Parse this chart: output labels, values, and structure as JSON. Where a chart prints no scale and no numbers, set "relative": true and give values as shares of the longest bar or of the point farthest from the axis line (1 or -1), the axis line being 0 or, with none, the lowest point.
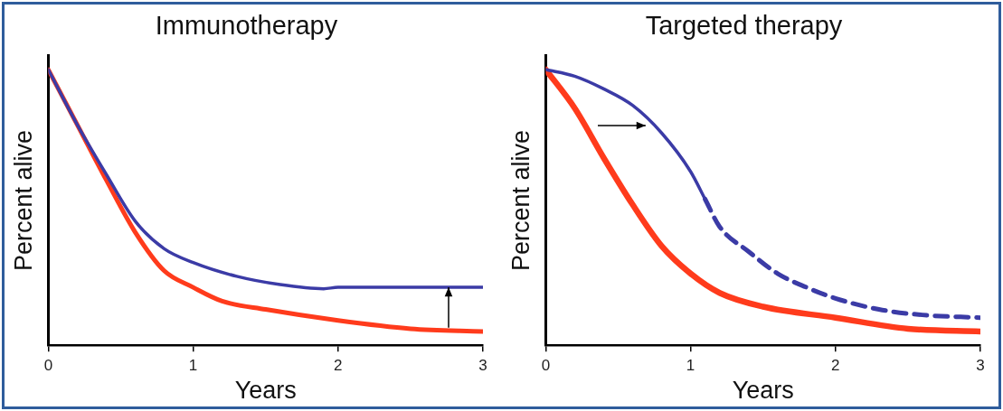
{
  "chart_data": [
    {
      "type": "line",
      "title": "Immunotherapy",
      "xlabel": "Years",
      "ylabel": "Percent alive",
      "relative": true,
      "xlim": [
        0,
        3
      ],
      "xticks": [
        0,
        1,
        2,
        3
      ],
      "grid": false,
      "legend": false,
      "marker": "none",
      "series": [
        {
          "color": "#3b3ba6",
          "line_style": "solid",
          "x": [
            0,
            0.2,
            0.4,
            0.6,
            0.8,
            1,
            1.3,
            1.6,
            1.9,
            2,
            3
          ],
          "values": [
            1,
            0.8,
            0.62,
            0.45,
            0.35,
            0.3,
            0.25,
            0.22,
            0.205,
            0.21,
            0.21
          ]
        },
        {
          "color": "#ff3b1c",
          "line_style": "solid",
          "x": [
            0,
            0.2,
            0.4,
            0.6,
            0.8,
            1,
            1.2,
            1.5,
            2,
            2.5,
            3
          ],
          "values": [
            1,
            0.8,
            0.6,
            0.41,
            0.27,
            0.21,
            0.16,
            0.13,
            0.09,
            0.06,
            0.05
          ]
        }
      ]
    },
    {
      "type": "line",
      "title": "Targeted therapy",
      "xlabel": "Years",
      "ylabel": "Percent alive",
      "relative": true,
      "xlim": [
        0,
        3
      ],
      "xticks": [
        0,
        1,
        2,
        3
      ],
      "grid": false,
      "legend": false,
      "marker": "none",
      "series": [
        {
          "color": "#3b3ba6",
          "line_style": "solid",
          "x": [
            0,
            0.2,
            0.4,
            0.6,
            0.8,
            1,
            1.1
          ],
          "values": [
            1,
            0.976,
            0.93,
            0.87,
            0.77,
            0.63,
            0.53
          ]
        },
        {
          "color": "#3b3ba6",
          "line_style": "dashed",
          "x": [
            1.1,
            1.2,
            1.4,
            1.6,
            1.8,
            2,
            2.3,
            2.6,
            3
          ],
          "values": [
            0.53,
            0.43,
            0.34,
            0.26,
            0.21,
            0.17,
            0.13,
            0.11,
            0.1
          ]
        },
        {
          "color": "#ff3b1c",
          "line_style": "solid",
          "x": [
            0,
            0.2,
            0.4,
            0.6,
            0.8,
            1,
            1.2,
            1.5,
            2,
            2.5,
            3
          ],
          "values": [
            1,
            0.86,
            0.68,
            0.51,
            0.36,
            0.26,
            0.19,
            0.14,
            0.1,
            0.06,
            0.05
          ]
        }
      ]
    }
  ]
}
